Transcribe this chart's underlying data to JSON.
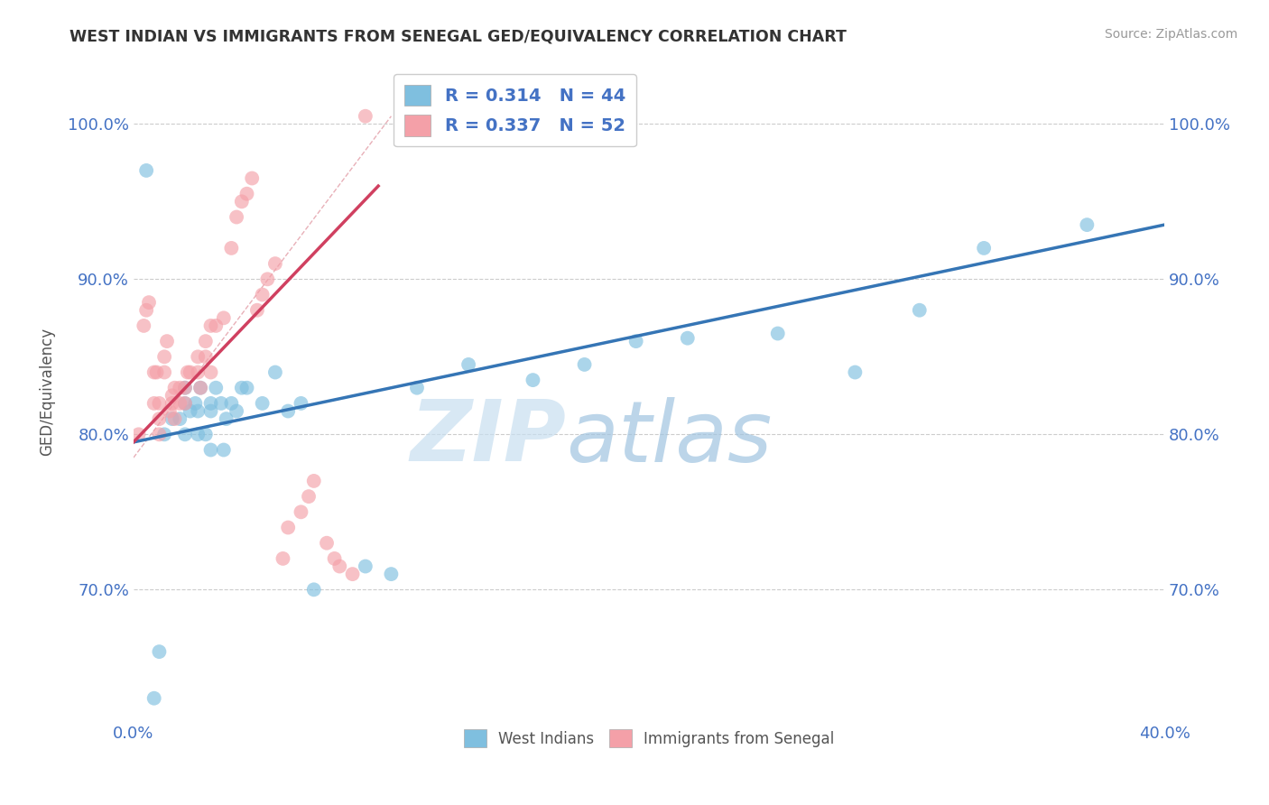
{
  "title": "WEST INDIAN VS IMMIGRANTS FROM SENEGAL GED/EQUIVALENCY CORRELATION CHART",
  "source": "Source: ZipAtlas.com",
  "ylabel": "GED/Equivalency",
  "ytick_labels": [
    "100.0%",
    "90.0%",
    "80.0%",
    "70.0%"
  ],
  "ytick_values": [
    1.0,
    0.9,
    0.8,
    0.7
  ],
  "xlim": [
    0.0,
    0.4
  ],
  "ylim": [
    0.615,
    1.04
  ],
  "legend1_R": "0.314",
  "legend1_N": "44",
  "legend2_R": "0.337",
  "legend2_N": "52",
  "blue_color": "#7fbfdf",
  "pink_color": "#f4a0a8",
  "blue_line_color": "#3575b5",
  "pink_line_color": "#d04060",
  "grid_color": "#cccccc",
  "title_color": "#333333",
  "stat_color": "#4472c4",
  "west_indians_x": [
    0.005,
    0.008,
    0.01,
    0.012,
    0.015,
    0.018,
    0.02,
    0.02,
    0.02,
    0.022,
    0.024,
    0.025,
    0.025,
    0.026,
    0.028,
    0.03,
    0.03,
    0.03,
    0.032,
    0.034,
    0.035,
    0.036,
    0.038,
    0.04,
    0.042,
    0.044,
    0.05,
    0.055,
    0.06,
    0.065,
    0.07,
    0.09,
    0.1,
    0.11,
    0.13,
    0.155,
    0.175,
    0.195,
    0.215,
    0.25,
    0.28,
    0.305,
    0.33,
    0.37
  ],
  "west_indians_y": [
    0.97,
    0.63,
    0.66,
    0.8,
    0.81,
    0.81,
    0.8,
    0.82,
    0.83,
    0.815,
    0.82,
    0.8,
    0.815,
    0.83,
    0.8,
    0.79,
    0.82,
    0.815,
    0.83,
    0.82,
    0.79,
    0.81,
    0.82,
    0.815,
    0.83,
    0.83,
    0.82,
    0.84,
    0.815,
    0.82,
    0.7,
    0.715,
    0.71,
    0.83,
    0.845,
    0.835,
    0.845,
    0.86,
    0.862,
    0.865,
    0.84,
    0.88,
    0.92,
    0.935
  ],
  "senegal_x": [
    0.002,
    0.004,
    0.005,
    0.006,
    0.008,
    0.008,
    0.009,
    0.01,
    0.01,
    0.01,
    0.012,
    0.012,
    0.013,
    0.014,
    0.015,
    0.015,
    0.016,
    0.016,
    0.018,
    0.018,
    0.02,
    0.02,
    0.021,
    0.022,
    0.025,
    0.025,
    0.026,
    0.028,
    0.028,
    0.03,
    0.03,
    0.032,
    0.035,
    0.038,
    0.04,
    0.042,
    0.044,
    0.046,
    0.048,
    0.05,
    0.052,
    0.055,
    0.058,
    0.06,
    0.065,
    0.068,
    0.07,
    0.075,
    0.078,
    0.08,
    0.085,
    0.09
  ],
  "senegal_y": [
    0.8,
    0.87,
    0.88,
    0.885,
    0.84,
    0.82,
    0.84,
    0.8,
    0.81,
    0.82,
    0.84,
    0.85,
    0.86,
    0.815,
    0.825,
    0.82,
    0.83,
    0.81,
    0.83,
    0.82,
    0.83,
    0.82,
    0.84,
    0.84,
    0.85,
    0.84,
    0.83,
    0.86,
    0.85,
    0.87,
    0.84,
    0.87,
    0.875,
    0.92,
    0.94,
    0.95,
    0.955,
    0.965,
    0.88,
    0.89,
    0.9,
    0.91,
    0.72,
    0.74,
    0.75,
    0.76,
    0.77,
    0.73,
    0.72,
    0.715,
    0.71,
    1.005
  ],
  "blue_line_x": [
    0.0,
    0.4
  ],
  "blue_line_y": [
    0.795,
    0.935
  ],
  "pink_line_x": [
    0.0,
    0.095
  ],
  "pink_line_y": [
    0.795,
    0.96
  ],
  "diag_line_x": [
    0.0,
    0.095
  ],
  "diag_line_y": [
    0.795,
    0.96
  ]
}
